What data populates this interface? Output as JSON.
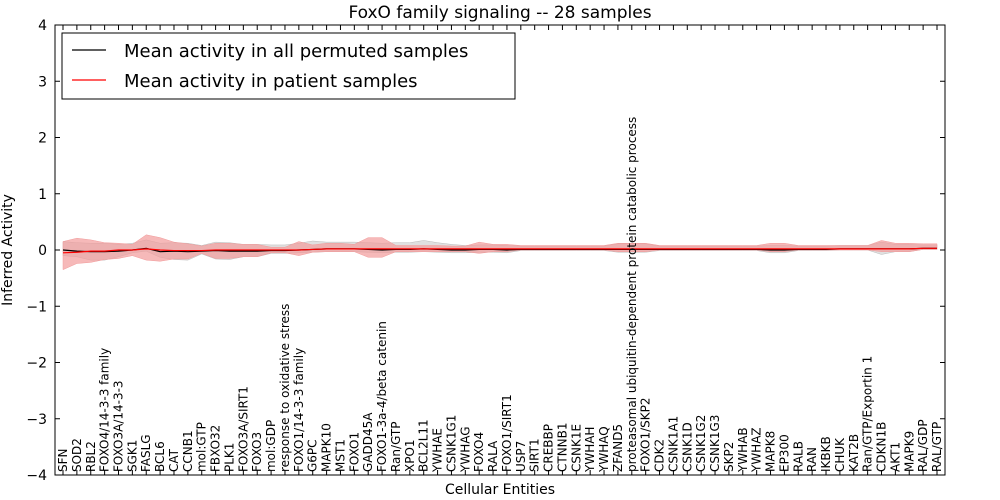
{
  "chart_data": {
    "type": "line",
    "title": "FoxO family signaling -- 28 samples",
    "xlabel": "Cellular Entities",
    "ylabel": "Inferred Activity",
    "ylim": [
      -4,
      4
    ],
    "yticks": [
      4,
      3,
      2,
      1,
      0,
      -1,
      -2,
      -3,
      -4
    ],
    "ytick_labels": [
      "4",
      "3",
      "2",
      "1",
      "0",
      "−1",
      "−2",
      "−3",
      "−4"
    ],
    "legend": {
      "placement": "top-left",
      "entries": [
        {
          "label": "Mean activity in all permuted samples",
          "color": "#000000"
        },
        {
          "label": "Mean activity in patient samples",
          "color": "#ff0000"
        }
      ]
    },
    "categories": [
      "SFN",
      "SOD2",
      "RBL2",
      "FOXO4/14-3-3 family",
      "FOXO3A/14-3-3",
      "SGK1",
      "FASLG",
      "BCL6",
      "CAT",
      "CCNB1",
      "mol:GTP",
      "FBXO32",
      "PLK1",
      "FOXO3A/SIRT1",
      "FOXO3",
      "mol:GDP",
      "response to oxidative stress",
      "FOXO1/14-3-3 family",
      "G6PC",
      "MAPK10",
      "MST1",
      "FOXO1",
      "GADD45A",
      "FOXO1-3a-4/beta catenin",
      "Ran/GTP",
      "XPO1",
      "BCL2L11",
      "YWHAE",
      "CSNK1G1",
      "YWHAG",
      "FOXO4",
      "RALA",
      "FOXO1/SIRT1",
      "USP7",
      "SIRT1",
      "CREBBP",
      "CTNNB1",
      "CSNK1E",
      "YWHAH",
      "YWHAQ",
      "ZFAND5",
      "proteasomal ubiquitin-dependent protein catabolic process",
      "FOXO1/SKP2",
      "CDK2",
      "CSNK1A1",
      "CSNK1D",
      "CSNK1G2",
      "CSNK1G3",
      "SKP2",
      "YWHAB",
      "YWHAZ",
      "MAPK8",
      "EP300",
      "RALB",
      "RAN",
      "IKBKB",
      "CHUK",
      "KAT2B",
      "Ran/GTP/Exportin 1",
      "CDKN1B",
      "AKT1",
      "MAPK9",
      "RAL/GDP",
      "RAL/GTP"
    ],
    "series": [
      {
        "name": "Mean activity in all permuted samples",
        "color": "#000000",
        "band_color": "#bbbbbb",
        "values": [
          0.0,
          -0.02,
          -0.03,
          -0.03,
          -0.02,
          0.0,
          0.03,
          -0.03,
          -0.02,
          -0.03,
          -0.02,
          -0.01,
          -0.02,
          -0.02,
          -0.02,
          -0.01,
          -0.01,
          0.0,
          0.01,
          0.02,
          0.02,
          0.02,
          0.01,
          0.0,
          0.01,
          0.01,
          0.02,
          0.01,
          0.0,
          0.0,
          0.01,
          0.01,
          0.0,
          0.01,
          0.01,
          0.01,
          0.01,
          0.01,
          0.01,
          0.01,
          0.01,
          0.01,
          0.01,
          0.01,
          0.01,
          0.01,
          0.01,
          0.01,
          0.01,
          0.01,
          0.01,
          0.0,
          0.0,
          0.01,
          0.01,
          0.01,
          0.02,
          0.02,
          0.02,
          0.02,
          0.02,
          0.02,
          0.03,
          0.03
        ],
        "lower": [
          -0.1,
          -0.1,
          -0.15,
          -0.15,
          -0.1,
          -0.05,
          -0.05,
          -0.1,
          -0.15,
          -0.15,
          -0.05,
          -0.15,
          -0.15,
          -0.1,
          -0.1,
          -0.05,
          -0.05,
          -0.05,
          -0.05,
          -0.05,
          -0.05,
          -0.05,
          -0.05,
          -0.05,
          -0.05,
          -0.05,
          -0.05,
          -0.05,
          -0.05,
          -0.05,
          -0.05,
          -0.05,
          -0.05,
          -0.02,
          -0.02,
          -0.02,
          -0.02,
          -0.02,
          -0.02,
          -0.02,
          -0.05,
          -0.05,
          -0.05,
          -0.02,
          -0.02,
          -0.02,
          -0.02,
          -0.02,
          -0.02,
          -0.02,
          -0.02,
          -0.05,
          -0.05,
          -0.02,
          -0.02,
          -0.02,
          -0.02,
          -0.02,
          -0.02,
          -0.1,
          -0.05,
          -0.05,
          -0.02,
          -0.02
        ],
        "upper": [
          0.15,
          0.15,
          0.15,
          0.15,
          0.12,
          0.12,
          0.15,
          0.15,
          0.15,
          0.15,
          0.1,
          0.15,
          0.15,
          0.12,
          0.12,
          0.1,
          0.1,
          0.12,
          0.15,
          0.12,
          0.12,
          0.12,
          0.12,
          0.12,
          0.12,
          0.12,
          0.15,
          0.12,
          0.1,
          0.08,
          0.08,
          0.08,
          0.08,
          0.06,
          0.06,
          0.06,
          0.06,
          0.06,
          0.06,
          0.06,
          0.1,
          0.1,
          0.1,
          0.06,
          0.06,
          0.06,
          0.06,
          0.06,
          0.06,
          0.06,
          0.06,
          0.08,
          0.08,
          0.06,
          0.06,
          0.06,
          0.06,
          0.06,
          0.06,
          0.12,
          0.08,
          0.08,
          0.06,
          0.06
        ]
      },
      {
        "name": "Mean activity in patient samples",
        "color": "#ff0000",
        "band_color": "#f29b9b",
        "values": [
          -0.05,
          -0.04,
          -0.02,
          -0.02,
          0.0,
          0.0,
          0.02,
          0.0,
          -0.01,
          -0.01,
          -0.01,
          0.0,
          0.0,
          0.0,
          0.0,
          0.0,
          0.0,
          0.0,
          0.01,
          0.02,
          0.02,
          0.02,
          0.02,
          0.02,
          0.02,
          0.02,
          0.02,
          0.02,
          0.02,
          0.02,
          0.02,
          0.02,
          0.02,
          0.02,
          0.02,
          0.02,
          0.02,
          0.02,
          0.02,
          0.02,
          0.02,
          0.02,
          0.02,
          0.02,
          0.02,
          0.02,
          0.02,
          0.02,
          0.02,
          0.02,
          0.02,
          0.02,
          0.02,
          0.02,
          0.02,
          0.02,
          0.02,
          0.02,
          0.02,
          0.02,
          0.02,
          0.02,
          0.03,
          0.03
        ],
        "lower": [
          -0.3,
          -0.2,
          -0.2,
          -0.15,
          -0.15,
          -0.1,
          -0.2,
          -0.2,
          -0.15,
          -0.15,
          -0.05,
          -0.15,
          -0.15,
          -0.12,
          -0.12,
          -0.05,
          -0.05,
          -0.1,
          -0.05,
          -0.05,
          -0.05,
          -0.05,
          -0.15,
          -0.15,
          -0.05,
          -0.05,
          -0.05,
          -0.05,
          -0.05,
          -0.05,
          -0.08,
          -0.05,
          -0.05,
          -0.02,
          -0.02,
          -0.02,
          -0.02,
          -0.02,
          -0.02,
          -0.02,
          -0.05,
          -0.05,
          -0.05,
          -0.02,
          -0.02,
          -0.02,
          -0.02,
          -0.02,
          -0.02,
          -0.02,
          -0.02,
          -0.05,
          -0.05,
          -0.02,
          -0.02,
          -0.02,
          -0.02,
          -0.02,
          -0.02,
          -0.05,
          -0.05,
          -0.05,
          -0.02,
          -0.02
        ],
        "upper": [
          0.2,
          0.25,
          0.2,
          0.15,
          0.12,
          0.1,
          0.25,
          0.22,
          0.15,
          0.12,
          0.08,
          0.12,
          0.12,
          0.1,
          0.1,
          0.05,
          0.05,
          0.15,
          0.08,
          0.1,
          0.1,
          0.08,
          0.2,
          0.2,
          0.06,
          0.06,
          0.06,
          0.06,
          0.05,
          0.05,
          0.12,
          0.08,
          0.08,
          0.06,
          0.06,
          0.06,
          0.06,
          0.06,
          0.06,
          0.06,
          0.1,
          0.1,
          0.1,
          0.06,
          0.06,
          0.06,
          0.06,
          0.06,
          0.06,
          0.06,
          0.06,
          0.1,
          0.1,
          0.06,
          0.06,
          0.06,
          0.06,
          0.06,
          0.06,
          0.15,
          0.1,
          0.1,
          0.08,
          0.08
        ]
      }
    ]
  }
}
